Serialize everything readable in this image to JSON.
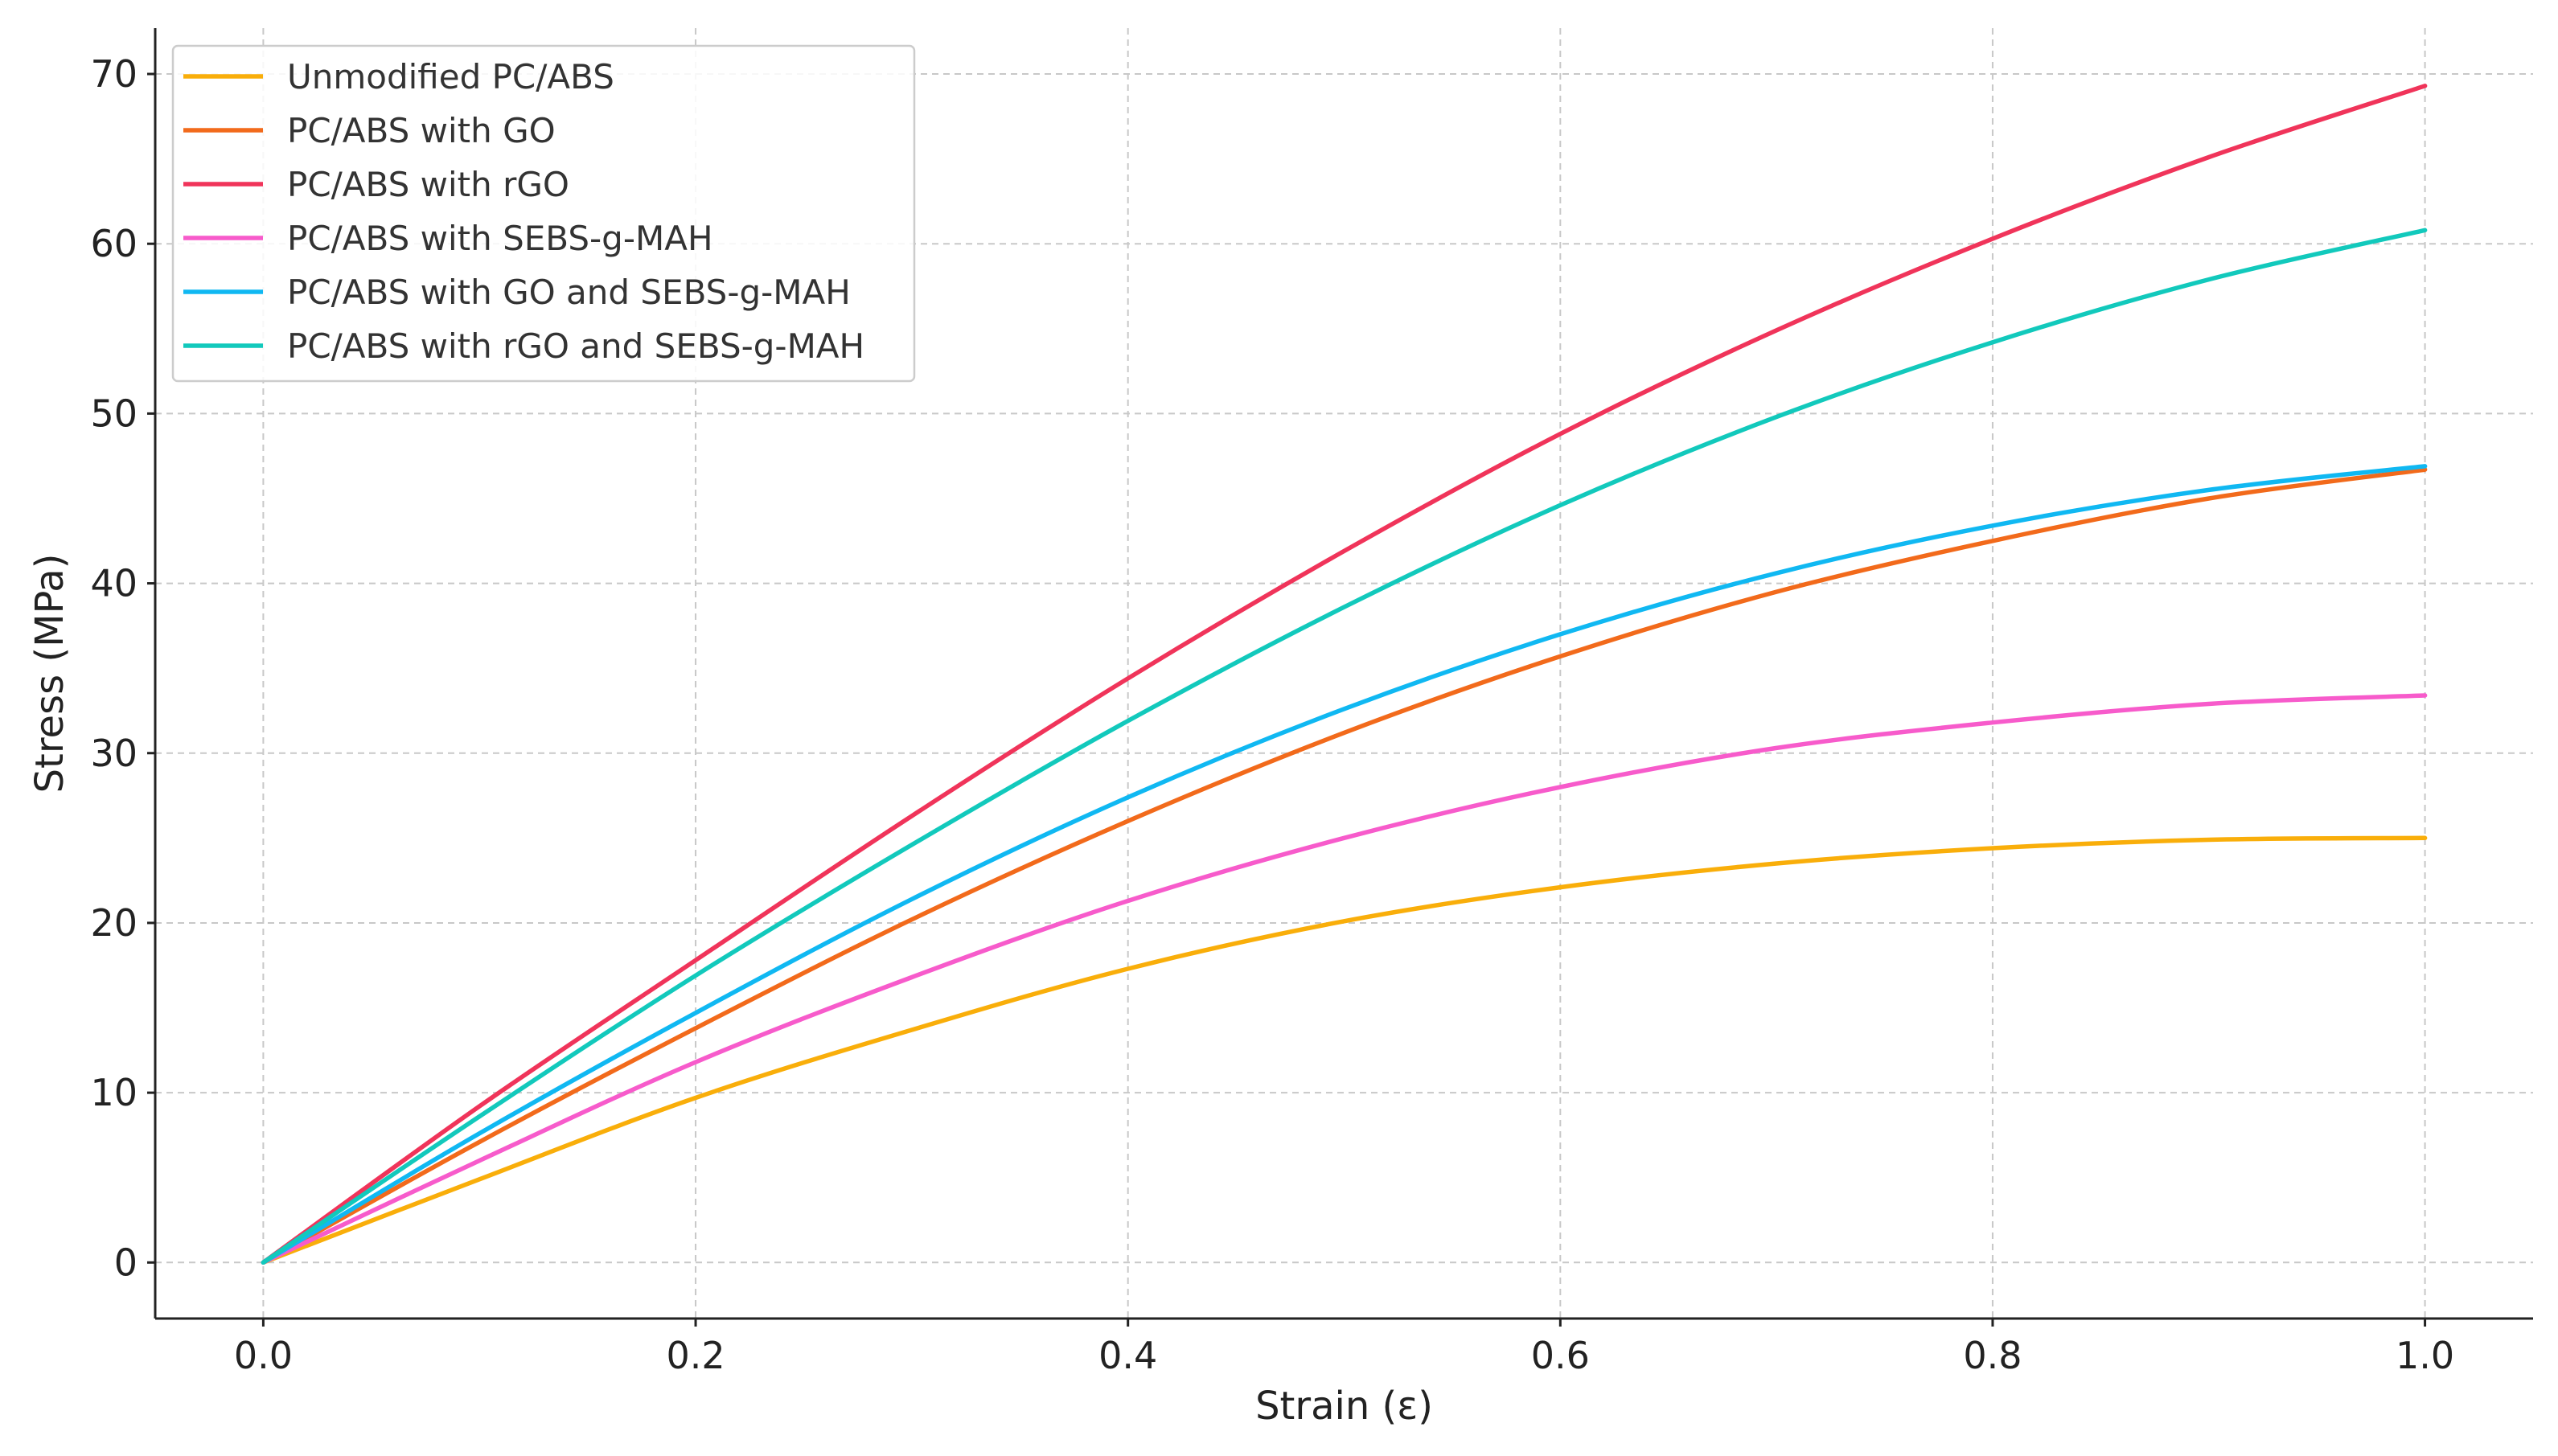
{
  "chart_data": {
    "type": "line",
    "title": "",
    "xlabel": "Strain (ε)",
    "ylabel": "Stress (MPa)",
    "xlim": [
      -0.05,
      1.05
    ],
    "ylim": [
      -3.3,
      72.7
    ],
    "xticks": [
      0.0,
      0.2,
      0.4,
      0.6,
      0.8,
      1.0
    ],
    "xtick_labels": [
      "0.0",
      "0.2",
      "0.4",
      "0.6",
      "0.8",
      "1.0"
    ],
    "yticks": [
      0,
      10,
      20,
      30,
      40,
      50,
      60,
      70
    ],
    "ytick_labels": [
      "0",
      "10",
      "20",
      "30",
      "40",
      "50",
      "60",
      "70"
    ],
    "grid": true,
    "legend_position": "top-left",
    "x": [
      0.0,
      0.1,
      0.2,
      0.3,
      0.4,
      0.5,
      0.6,
      0.7,
      0.8,
      0.9,
      1.0
    ],
    "series": [
      {
        "name": "Unmodified PC/ABS",
        "color": "#F9AE0A",
        "values": [
          0.0,
          4.9,
          9.7,
          13.7,
          17.3,
          20.1,
          22.1,
          23.5,
          24.4,
          24.9,
          25.0
        ]
      },
      {
        "name": "PC/ABS with GO",
        "color": "#F26A1B",
        "values": [
          0.0,
          7.1,
          13.8,
          20.2,
          26.0,
          31.2,
          35.7,
          39.5,
          42.5,
          45.0,
          46.7
        ]
      },
      {
        "name": "PC/ABS with rGO",
        "color": "#F0345A",
        "values": [
          0.0,
          9.2,
          17.8,
          26.3,
          34.4,
          41.9,
          48.8,
          54.9,
          60.3,
          65.1,
          69.3
        ]
      },
      {
        "name": "PC/ABS with SEBS-g-MAH",
        "color": "#F75BCB",
        "values": [
          0.0,
          6.0,
          11.8,
          16.8,
          21.3,
          25.0,
          28.0,
          30.3,
          31.8,
          32.9,
          33.4
        ]
      },
      {
        "name": "PC/ABS with GO and SEBS-g-MAH",
        "color": "#10B8F2",
        "values": [
          0.0,
          7.6,
          14.7,
          21.4,
          27.4,
          32.6,
          37.0,
          40.6,
          43.4,
          45.5,
          46.9
        ]
      },
      {
        "name": "PC/ABS with rGO and SEBS-g-MAH",
        "color": "#12C9BC",
        "values": [
          0.0,
          8.6,
          16.9,
          24.6,
          31.9,
          38.6,
          44.6,
          49.8,
          54.2,
          57.9,
          60.8
        ]
      }
    ]
  }
}
